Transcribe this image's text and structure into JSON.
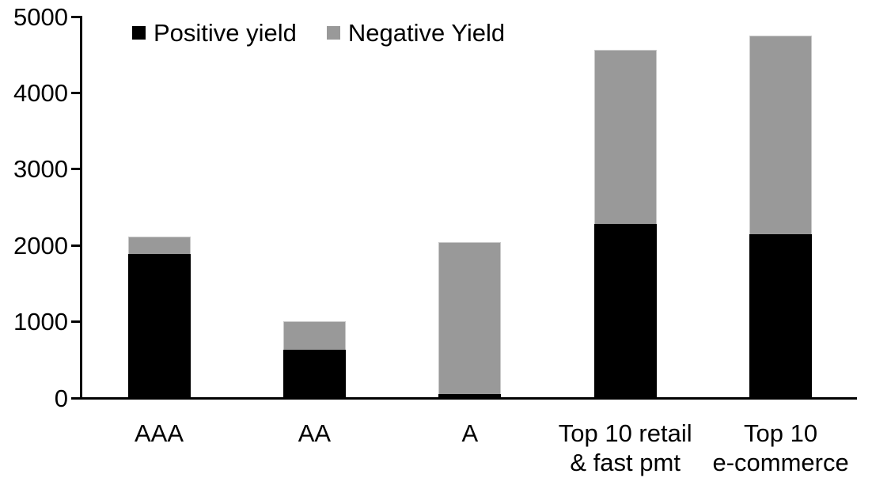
{
  "chart_data": {
    "type": "bar",
    "stacked": true,
    "title": "",
    "xlabel": "",
    "ylabel": "",
    "categories": [
      "AAA",
      "AA",
      "A",
      "Top 10 retail\n& fast pmt",
      "Top 10\ne-commerce"
    ],
    "series": [
      {
        "name": "Positive yield",
        "color": "#000000",
        "values": [
          1890,
          630,
          50,
          2280,
          2150
        ]
      },
      {
        "name": "Negative Yield",
        "color": "#999999",
        "values": [
          230,
          380,
          1990,
          2280,
          2600
        ]
      }
    ],
    "totals": [
      2120,
      1010,
      2040,
      4560,
      4750
    ],
    "ylim": [
      0,
      5000
    ],
    "yticks": [
      "0",
      "1000",
      "2000",
      "3000",
      "4000",
      "5000"
    ],
    "grid": false,
    "legend_position": "top",
    "colors": {
      "positive": "#000000",
      "negative": "#999999",
      "axis": "#000000",
      "background": "#ffffff",
      "bar_border": "#c9c9c9"
    }
  }
}
